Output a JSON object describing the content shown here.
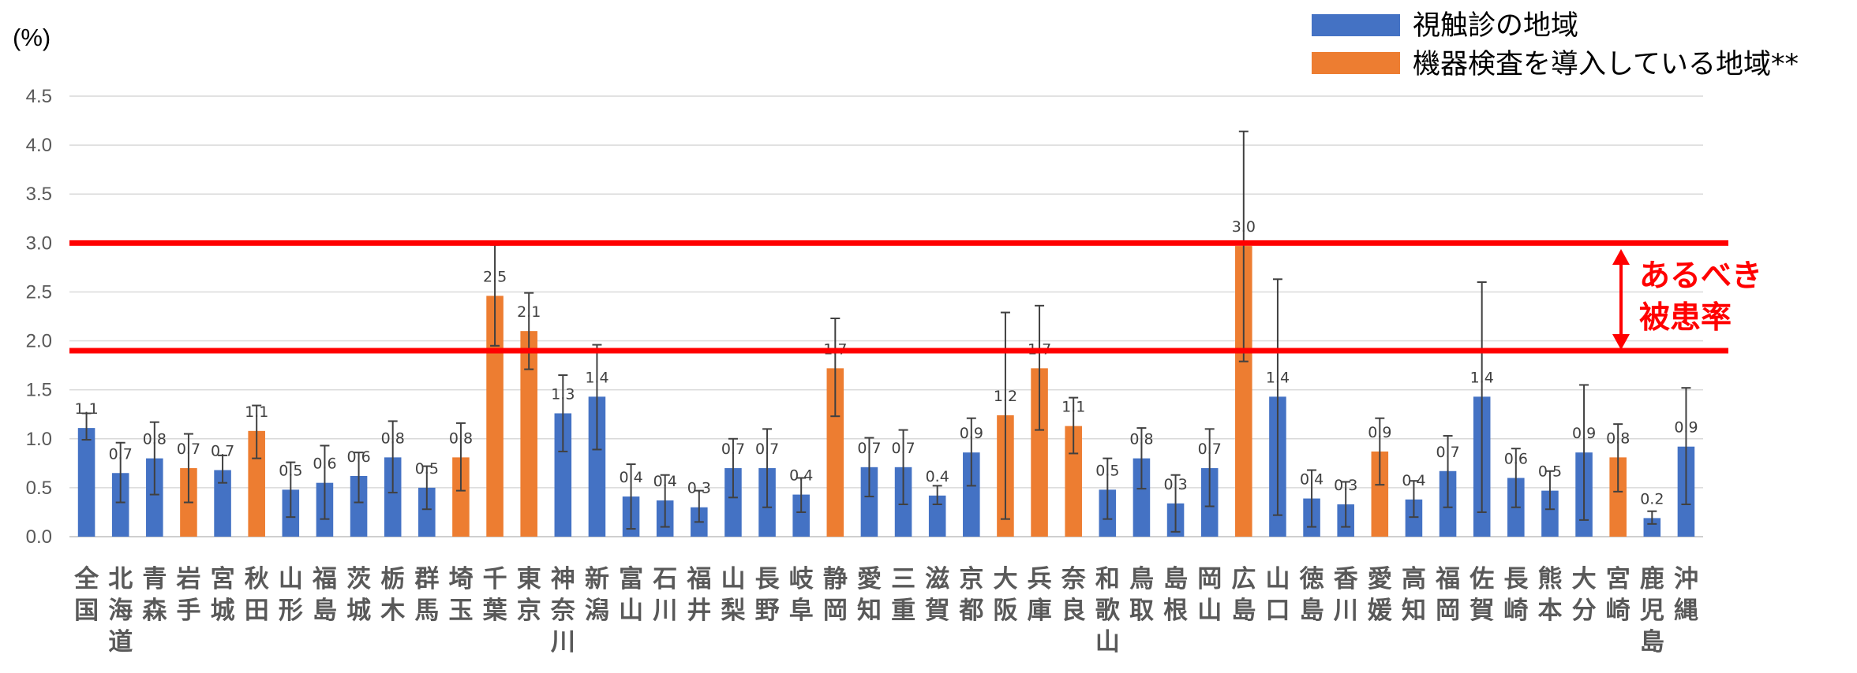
{
  "chart_data": {
    "type": "bar",
    "unit_label": "(%)",
    "ylim": [
      0,
      4.5
    ],
    "y_ticks": [
      "0.0",
      "0.5",
      "1.0",
      "1.5",
      "2.0",
      "2.5",
      "3.0",
      "3.5",
      "4.0",
      "4.5"
    ],
    "grid": true,
    "legend_position": "top-right",
    "legend": [
      {
        "label": "視触診の地域",
        "color": "#4472c4"
      },
      {
        "label": "機器検査を導入している地域**",
        "color": "#ed7d31"
      }
    ],
    "colors": {
      "palpation": "#4472c4",
      "device": "#ed7d31",
      "reference": "#ff0000",
      "grid": "#d9d9d9",
      "error_bar": "#404040"
    },
    "categories": [
      [
        "全",
        "国"
      ],
      [
        "北",
        "海",
        "道"
      ],
      [
        "青",
        "森"
      ],
      [
        "岩",
        "手"
      ],
      [
        "宮",
        "城"
      ],
      [
        "秋",
        "田"
      ],
      [
        "山",
        "形"
      ],
      [
        "福",
        "島"
      ],
      [
        "茨",
        "城"
      ],
      [
        "栃",
        "木"
      ],
      [
        "群",
        "馬"
      ],
      [
        "埼",
        "玉"
      ],
      [
        "千",
        "葉"
      ],
      [
        "東",
        "京"
      ],
      [
        "神",
        "奈",
        "川"
      ],
      [
        "新",
        "潟"
      ],
      [
        "富",
        "山"
      ],
      [
        "石",
        "川"
      ],
      [
        "福",
        "井"
      ],
      [
        "山",
        "梨"
      ],
      [
        "長",
        "野"
      ],
      [
        "岐",
        "阜"
      ],
      [
        "静",
        "岡"
      ],
      [
        "愛",
        "知"
      ],
      [
        "三",
        "重"
      ],
      [
        "滋",
        "賀"
      ],
      [
        "京",
        "都"
      ],
      [
        "大",
        "阪"
      ],
      [
        "兵",
        "庫"
      ],
      [
        "奈",
        "良"
      ],
      [
        "和",
        "歌",
        "山"
      ],
      [
        "鳥",
        "取"
      ],
      [
        "島",
        "根"
      ],
      [
        "岡",
        "山"
      ],
      [
        "広",
        "島"
      ],
      [
        "山",
        "口"
      ],
      [
        "徳",
        "島"
      ],
      [
        "香",
        "川"
      ],
      [
        "愛",
        "媛"
      ],
      [
        "高",
        "知"
      ],
      [
        "福",
        "岡"
      ],
      [
        "佐",
        "賀"
      ],
      [
        "長",
        "崎"
      ],
      [
        "熊",
        "本"
      ],
      [
        "大",
        "分"
      ],
      [
        "宮",
        "崎"
      ],
      [
        "鹿",
        "児",
        "島"
      ],
      [
        "沖",
        "縄"
      ]
    ],
    "values": [
      1.11,
      0.65,
      0.8,
      0.7,
      0.68,
      1.08,
      0.48,
      0.55,
      0.62,
      0.81,
      0.5,
      0.81,
      2.46,
      2.1,
      1.26,
      1.43,
      0.41,
      0.37,
      0.3,
      0.7,
      0.7,
      0.43,
      1.72,
      0.71,
      0.71,
      0.42,
      0.86,
      1.24,
      1.72,
      1.13,
      0.48,
      0.8,
      0.34,
      0.7,
      2.97,
      1.43,
      0.39,
      0.33,
      0.87,
      0.38,
      0.67,
      1.43,
      0.6,
      0.47,
      0.86,
      0.81,
      0.19,
      0.92
    ],
    "data_labels": [
      "1.1",
      "0.7",
      "0.8",
      "0.7",
      "0.7",
      "1.1",
      "0.5",
      "0.6",
      "0.6",
      "0.8",
      "0.5",
      "0.8",
      "2.5",
      "2.1",
      "1.3",
      "1.4",
      "0.4",
      "0.4",
      "0.3",
      "0.7",
      "0.7",
      "0.4",
      "1.7",
      "0.7",
      "0.7",
      "0.4",
      "0.9",
      "1.2",
      "1.7",
      "1.1",
      "0.5",
      "0.8",
      "0.3",
      "0.7",
      "3.0",
      "1.4",
      "0.4",
      "0.3",
      "0.9",
      "0.4",
      "0.7",
      "1.4",
      "0.6",
      "0.5",
      "0.9",
      "0.8",
      "0.2",
      "0.9"
    ],
    "error_low": [
      0.99,
      0.35,
      0.43,
      0.35,
      0.55,
      0.8,
      0.2,
      0.18,
      0.35,
      0.45,
      0.28,
      0.47,
      1.95,
      1.71,
      0.87,
      0.89,
      0.08,
      0.1,
      0.15,
      0.4,
      0.3,
      0.25,
      1.23,
      0.41,
      0.33,
      0.33,
      0.52,
      0.18,
      1.09,
      0.85,
      0.18,
      0.49,
      0.05,
      0.31,
      1.79,
      0.22,
      0.1,
      0.1,
      0.53,
      0.2,
      0.3,
      0.25,
      0.3,
      0.28,
      0.17,
      0.46,
      0.13,
      0.33
    ],
    "error_high": [
      1.26,
      0.96,
      1.17,
      1.05,
      0.83,
      1.34,
      0.76,
      0.93,
      0.86,
      1.18,
      0.72,
      1.16,
      2.98,
      2.49,
      1.65,
      1.96,
      0.74,
      0.63,
      0.47,
      1.0,
      1.1,
      0.6,
      2.23,
      1.01,
      1.09,
      0.52,
      1.21,
      2.29,
      2.36,
      1.42,
      0.8,
      1.11,
      0.63,
      1.1,
      4.14,
      2.63,
      0.68,
      0.56,
      1.21,
      0.57,
      1.03,
      2.6,
      0.9,
      0.67,
      1.55,
      1.15,
      0.26,
      1.52
    ],
    "series_type": [
      "palpation",
      "palpation",
      "palpation",
      "device",
      "palpation",
      "device",
      "palpation",
      "palpation",
      "palpation",
      "palpation",
      "palpation",
      "device",
      "device",
      "device",
      "palpation",
      "palpation",
      "palpation",
      "palpation",
      "palpation",
      "palpation",
      "palpation",
      "palpation",
      "device",
      "palpation",
      "palpation",
      "palpation",
      "palpation",
      "device",
      "device",
      "device",
      "palpation",
      "palpation",
      "palpation",
      "palpation",
      "device",
      "palpation",
      "palpation",
      "palpation",
      "device",
      "palpation",
      "palpation",
      "palpation",
      "palpation",
      "palpation",
      "palpation",
      "device",
      "palpation",
      "palpation"
    ],
    "reference_lines": [
      3.0,
      1.9
    ],
    "annotation": [
      "あるべき",
      "被患率"
    ]
  }
}
